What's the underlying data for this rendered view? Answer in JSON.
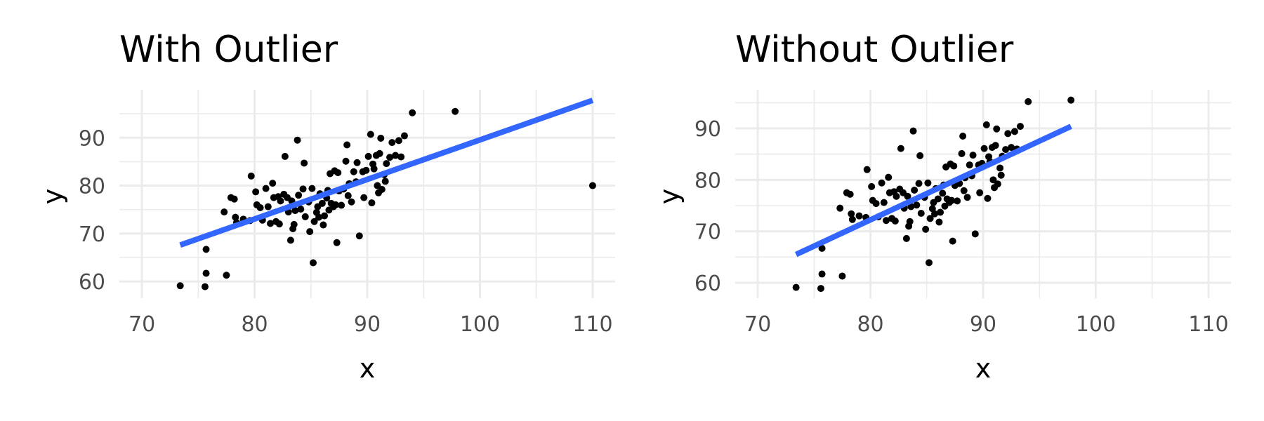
{
  "figure": {
    "colors": {
      "line": "#3366ff",
      "points": "#000000",
      "grid": "#ebebeb"
    }
  },
  "chart_data": [
    {
      "type": "scatter",
      "title": "With Outlier",
      "xlabel": "x",
      "ylabel": "y",
      "xlim": [
        68,
        112
      ],
      "ylim": [
        56.5,
        100
      ],
      "xticks": [
        70,
        80,
        90,
        100,
        110
      ],
      "xtick_labels": [
        "70",
        "80",
        "90",
        "100",
        "110"
      ],
      "yticks": [
        60,
        70,
        80,
        90
      ],
      "ytick_labels": [
        "60",
        "70",
        "80",
        "90"
      ],
      "xminor": [
        75,
        85,
        95,
        105
      ],
      "yminor": [
        65,
        75,
        85,
        95
      ],
      "fit_line": {
        "x": [
          73.4,
          110
        ],
        "y": [
          67.6,
          97.8
        ]
      },
      "points": [
        [
          73.4,
          59.1
        ],
        [
          75.6,
          58.9
        ],
        [
          75.7,
          61.7
        ],
        [
          75.7,
          66.7
        ],
        [
          77.5,
          61.3
        ],
        [
          77.3,
          74.5
        ],
        [
          77.9,
          77.5
        ],
        [
          78.2,
          77.2
        ],
        [
          78.3,
          73.4
        ],
        [
          78.4,
          72.3
        ],
        [
          79.0,
          73.0
        ],
        [
          79.6,
          72.7
        ],
        [
          79.7,
          82.0
        ],
        [
          80.1,
          78.7
        ],
        [
          80.2,
          76.0
        ],
        [
          80.5,
          75.4
        ],
        [
          80.7,
          72.8
        ],
        [
          81.0,
          79.4
        ],
        [
          81.2,
          75.6
        ],
        [
          81.4,
          72.1
        ],
        [
          81.6,
          80.5
        ],
        [
          81.7,
          77.5
        ],
        [
          81.9,
          72.5
        ],
        [
          82.1,
          77.7
        ],
        [
          82.2,
          72.0
        ],
        [
          82.3,
          76.8
        ],
        [
          82.6,
          78.2
        ],
        [
          82.7,
          86.1
        ],
        [
          82.9,
          77.5
        ],
        [
          83.0,
          74.5
        ],
        [
          83.2,
          68.6
        ],
        [
          83.3,
          76.8
        ],
        [
          83.4,
          71.0
        ],
        [
          83.5,
          71.9
        ],
        [
          83.6,
          74.8
        ],
        [
          83.8,
          89.5
        ],
        [
          83.9,
          78.0
        ],
        [
          84.1,
          75.1
        ],
        [
          84.3,
          79.3
        ],
        [
          84.4,
          84.7
        ],
        [
          84.5,
          73.5
        ],
        [
          84.8,
          76.6
        ],
        [
          84.9,
          70.4
        ],
        [
          85.1,
          79.4
        ],
        [
          85.2,
          63.9
        ],
        [
          85.3,
          72.5
        ],
        [
          85.5,
          74.4
        ],
        [
          85.6,
          75.6
        ],
        [
          85.7,
          73.4
        ],
        [
          85.8,
          78.3
        ],
        [
          86.0,
          76.3
        ],
        [
          86.1,
          71.8
        ],
        [
          86.2,
          73.7
        ],
        [
          86.4,
          77.4
        ],
        [
          86.5,
          79.0
        ],
        [
          86.6,
          74.9
        ],
        [
          86.7,
          82.5
        ],
        [
          86.8,
          76.3
        ],
        [
          87.0,
          75.6
        ],
        [
          87.1,
          83.1
        ],
        [
          87.2,
          76.0
        ],
        [
          87.3,
          68.1
        ],
        [
          87.4,
          82.7
        ],
        [
          87.5,
          78.9
        ],
        [
          87.7,
          75.9
        ],
        [
          87.9,
          79.3
        ],
        [
          88.1,
          85.1
        ],
        [
          88.2,
          88.5
        ],
        [
          88.3,
          77.9
        ],
        [
          88.4,
          80.4
        ],
        [
          88.6,
          76.6
        ],
        [
          88.8,
          82.9
        ],
        [
          89.0,
          80.8
        ],
        [
          89.1,
          84.8
        ],
        [
          89.3,
          69.5
        ],
        [
          89.6,
          82.9
        ],
        [
          89.7,
          77.5
        ],
        [
          89.9,
          83.2
        ],
        [
          90.1,
          86.1
        ],
        [
          90.3,
          90.7
        ],
        [
          90.4,
          76.4
        ],
        [
          90.5,
          84.5
        ],
        [
          90.6,
          83.5
        ],
        [
          90.8,
          86.3
        ],
        [
          90.9,
          80.0
        ],
        [
          91.0,
          78.5
        ],
        [
          91.1,
          86.7
        ],
        [
          91.2,
          89.9
        ],
        [
          91.3,
          79.2
        ],
        [
          91.5,
          82.3
        ],
        [
          91.6,
          80.9
        ],
        [
          91.7,
          84.6
        ],
        [
          92.0,
          85.9
        ],
        [
          92.2,
          89.0
        ],
        [
          92.5,
          86.3
        ],
        [
          92.8,
          89.4
        ],
        [
          93.0,
          86.0
        ],
        [
          93.3,
          90.4
        ],
        [
          94.0,
          95.2
        ],
        [
          97.8,
          95.5
        ],
        [
          110,
          80
        ]
      ]
    },
    {
      "type": "scatter",
      "title": "Without Outlier",
      "xlabel": "x",
      "ylabel": "y",
      "xlim": [
        68,
        112
      ],
      "ylim": [
        57,
        97.5
      ],
      "xticks": [
        70,
        80,
        90,
        100,
        110
      ],
      "xtick_labels": [
        "70",
        "80",
        "90",
        "100",
        "110"
      ],
      "yticks": [
        60,
        70,
        80,
        90
      ],
      "ytick_labels": [
        "60",
        "70",
        "80",
        "90"
      ],
      "xminor": [
        75,
        85,
        95,
        105
      ],
      "yminor": [
        65,
        75,
        85,
        95
      ],
      "fit_line": {
        "x": [
          73.4,
          97.8
        ],
        "y": [
          65.5,
          90.4
        ]
      },
      "points": [
        [
          73.4,
          59.1
        ],
        [
          75.6,
          58.9
        ],
        [
          75.7,
          61.7
        ],
        [
          75.7,
          66.7
        ],
        [
          77.5,
          61.3
        ],
        [
          77.3,
          74.5
        ],
        [
          77.9,
          77.5
        ],
        [
          78.2,
          77.2
        ],
        [
          78.3,
          73.4
        ],
        [
          78.4,
          72.3
        ],
        [
          79.0,
          73.0
        ],
        [
          79.6,
          72.7
        ],
        [
          79.7,
          82.0
        ],
        [
          80.1,
          78.7
        ],
        [
          80.2,
          76.0
        ],
        [
          80.5,
          75.4
        ],
        [
          80.7,
          72.8
        ],
        [
          81.0,
          79.4
        ],
        [
          81.2,
          75.6
        ],
        [
          81.4,
          72.1
        ],
        [
          81.6,
          80.5
        ],
        [
          81.7,
          77.5
        ],
        [
          81.9,
          72.5
        ],
        [
          82.1,
          77.7
        ],
        [
          82.2,
          72.0
        ],
        [
          82.3,
          76.8
        ],
        [
          82.6,
          78.2
        ],
        [
          82.7,
          86.1
        ],
        [
          82.9,
          77.5
        ],
        [
          83.0,
          74.5
        ],
        [
          83.2,
          68.6
        ],
        [
          83.3,
          76.8
        ],
        [
          83.4,
          71.0
        ],
        [
          83.5,
          71.9
        ],
        [
          83.6,
          74.8
        ],
        [
          83.8,
          89.5
        ],
        [
          83.9,
          78.0
        ],
        [
          84.1,
          75.1
        ],
        [
          84.3,
          79.3
        ],
        [
          84.4,
          84.7
        ],
        [
          84.5,
          73.5
        ],
        [
          84.8,
          76.6
        ],
        [
          84.9,
          70.4
        ],
        [
          85.1,
          79.4
        ],
        [
          85.2,
          63.9
        ],
        [
          85.3,
          72.5
        ],
        [
          85.5,
          74.4
        ],
        [
          85.6,
          75.6
        ],
        [
          85.7,
          73.4
        ],
        [
          85.8,
          78.3
        ],
        [
          86.0,
          76.3
        ],
        [
          86.1,
          71.8
        ],
        [
          86.2,
          73.7
        ],
        [
          86.4,
          77.4
        ],
        [
          86.5,
          79.0
        ],
        [
          86.6,
          74.9
        ],
        [
          86.7,
          82.5
        ],
        [
          86.8,
          76.3
        ],
        [
          87.0,
          75.6
        ],
        [
          87.1,
          83.1
        ],
        [
          87.2,
          76.0
        ],
        [
          87.3,
          68.1
        ],
        [
          87.4,
          82.7
        ],
        [
          87.5,
          78.9
        ],
        [
          87.7,
          75.9
        ],
        [
          87.9,
          79.3
        ],
        [
          88.1,
          85.1
        ],
        [
          88.2,
          88.5
        ],
        [
          88.3,
          77.9
        ],
        [
          88.4,
          80.4
        ],
        [
          88.6,
          76.6
        ],
        [
          88.8,
          82.9
        ],
        [
          89.0,
          80.8
        ],
        [
          89.1,
          84.8
        ],
        [
          89.3,
          69.5
        ],
        [
          89.6,
          82.9
        ],
        [
          89.7,
          77.5
        ],
        [
          89.9,
          83.2
        ],
        [
          90.1,
          86.1
        ],
        [
          90.3,
          90.7
        ],
        [
          90.4,
          76.4
        ],
        [
          90.5,
          84.5
        ],
        [
          90.6,
          83.5
        ],
        [
          90.8,
          86.3
        ],
        [
          90.9,
          80.0
        ],
        [
          91.0,
          78.5
        ],
        [
          91.1,
          86.7
        ],
        [
          91.2,
          89.9
        ],
        [
          91.3,
          79.2
        ],
        [
          91.5,
          82.3
        ],
        [
          91.6,
          80.9
        ],
        [
          91.7,
          84.6
        ],
        [
          92.0,
          85.9
        ],
        [
          92.2,
          89.0
        ],
        [
          92.5,
          86.3
        ],
        [
          92.8,
          89.4
        ],
        [
          93.0,
          86.0
        ],
        [
          93.3,
          90.4
        ],
        [
          94.0,
          95.2
        ],
        [
          97.8,
          95.5
        ]
      ]
    }
  ]
}
